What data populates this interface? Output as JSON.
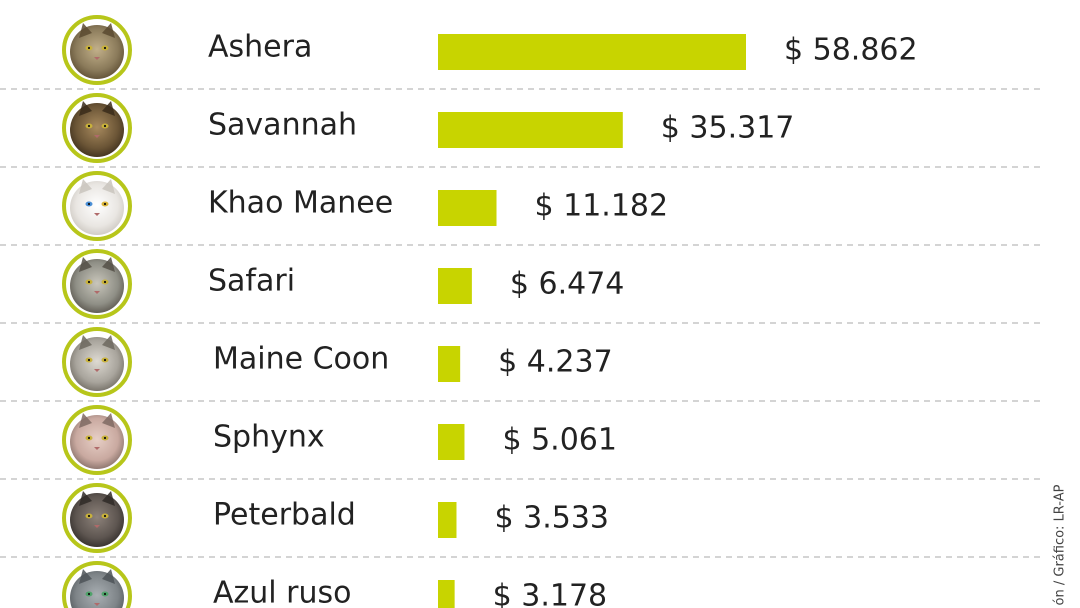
{
  "chart_data": {
    "type": "bar",
    "orientation": "horizontal",
    "categories": [
      "Ashera",
      "Savannah",
      "Khao Manee",
      "Safari",
      "Maine Coon",
      "Sphynx",
      "Peterbald",
      "Azul ruso"
    ],
    "values": [
      58862,
      35317,
      11182,
      6474,
      4237,
      5061,
      3533,
      3178
    ],
    "value_labels": [
      "$ 58.862",
      "$ 35.317",
      "$ 11.182",
      "$ 6.474",
      "$ 4.237",
      "$ 5.061",
      "$ 3.533",
      "$ 3.178"
    ],
    "icons": [
      "ashera-cat-icon",
      "savannah-cat-icon",
      "khao-manee-cat-icon",
      "safari-cat-icon",
      "maine-coon-cat-icon",
      "sphynx-cat-icon",
      "peterbald-cat-icon",
      "russian-blue-cat-icon"
    ],
    "grid": "dashed horizontal separators",
    "colors": {
      "bar": "#c8d400",
      "avatar_ring": "#b7c61a",
      "divider": "#aaaaaa",
      "text": "#222222"
    }
  },
  "credit": "ón / Gráfico: LR-AP"
}
